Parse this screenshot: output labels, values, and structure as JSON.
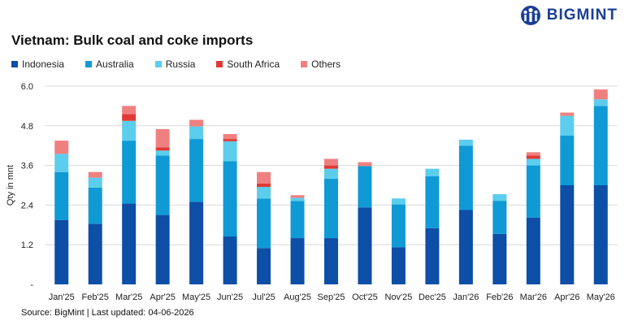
{
  "title": "Vietnam: Bulk coal and coke imports",
  "brand": "BIGMINT",
  "source": "Source: BigMint | Last updated: 04-06-2026",
  "chart_data": {
    "type": "bar",
    "stacked": true,
    "title": "Vietnam: Bulk coal and coke imports",
    "xlabel": "",
    "ylabel": "Qty in mnt",
    "ylim": [
      0,
      6.0
    ],
    "yticks": [
      "-",
      "1.2",
      "2.4",
      "3.6",
      "4.8",
      "6.0"
    ],
    "grid": true,
    "legend_position": "top-left",
    "categories": [
      "Jan'25",
      "Feb'25",
      "Mar'25",
      "Apr'25",
      "May'25",
      "Jun'25",
      "Jul'25",
      "Aug'25",
      "Sep'25",
      "Oct'25",
      "Nov'25",
      "Dec'25",
      "Jan'26",
      "Feb'26",
      "Mar'26",
      "Apr'26",
      "May'26"
    ],
    "series": [
      {
        "name": "Indonesia",
        "color": "#0d4ea6",
        "values": [
          1.95,
          1.83,
          2.45,
          2.1,
          2.5,
          1.45,
          1.1,
          1.4,
          1.4,
          2.33,
          1.12,
          1.7,
          2.25,
          1.53,
          2.02,
          3.0,
          3.0
        ]
      },
      {
        "name": "Australia",
        "color": "#0f9ad6",
        "values": [
          1.45,
          1.1,
          1.9,
          1.8,
          1.9,
          2.28,
          1.5,
          1.12,
          1.8,
          1.25,
          1.3,
          1.57,
          1.95,
          1.0,
          1.58,
          1.5,
          2.4
        ]
      },
      {
        "name": "Russia",
        "color": "#5ccdec",
        "values": [
          0.55,
          0.3,
          0.6,
          0.15,
          0.38,
          0.6,
          0.35,
          0.1,
          0.3,
          0.0,
          0.18,
          0.23,
          0.18,
          0.2,
          0.2,
          0.6,
          0.2
        ]
      },
      {
        "name": "South Africa",
        "color": "#e03a36",
        "values": [
          0.0,
          0.0,
          0.2,
          0.1,
          0.0,
          0.07,
          0.1,
          0.0,
          0.1,
          0.0,
          0.0,
          0.0,
          0.0,
          0.0,
          0.1,
          0.0,
          0.0
        ]
      },
      {
        "name": "Others",
        "color": "#f08080",
        "values": [
          0.4,
          0.17,
          0.25,
          0.55,
          0.2,
          0.15,
          0.35,
          0.08,
          0.2,
          0.12,
          0.0,
          0.0,
          0.0,
          0.0,
          0.1,
          0.1,
          0.3
        ]
      }
    ]
  }
}
